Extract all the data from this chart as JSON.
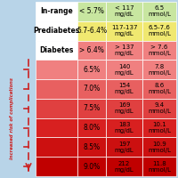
{
  "bg_color": "#b8d4e8",
  "rows": [
    {
      "label": "In-range",
      "a1c": "< 5.7%",
      "mgdl": "< 117\nmg/dL",
      "mmol": "6.5\nmmol/L",
      "row_color": "#c8e6a0",
      "label_color": "#ffffff"
    },
    {
      "label": "Prediabetes",
      "a1c": "5.7-6.4%",
      "mgdl": "117-137\nmg/dL",
      "mmol": "6.5-7.6\nmmol/L",
      "row_color": "#f0e870",
      "label_color": "#ffffff"
    },
    {
      "label": "Diabetes",
      "a1c": "> 6.4%",
      "mgdl": "> 137\nmg/dL",
      "mmol": "> 7.6\nmmol/L",
      "row_color": "#f08080",
      "label_color": "#ffffff"
    },
    {
      "label": "",
      "a1c": "6.5%",
      "mgdl": "140\nmg/dL",
      "mmol": "7.8\nmmol/L",
      "row_color": "#f08080"
    },
    {
      "label": "",
      "a1c": "7.0%",
      "mgdl": "154\nmg/dL",
      "mmol": "8.6\nmmol/L",
      "row_color": "#e86060"
    },
    {
      "label": "",
      "a1c": "7.5%",
      "mgdl": "169\nmg/dL",
      "mmol": "9.4\nmmol/L",
      "row_color": "#e04040"
    },
    {
      "label": "",
      "a1c": "8.0%",
      "mgdl": "183\nmg/dL",
      "mmol": "10.1\nmmol/L",
      "row_color": "#d82020"
    },
    {
      "label": "",
      "a1c": "8.5%",
      "mgdl": "197\nmg/dL",
      "mmol": "10.9\nmmol/L",
      "row_color": "#cc1010"
    },
    {
      "label": "",
      "a1c": "9.0%",
      "mgdl": "212\nmg/dL",
      "mmol": "11.8\nmmol/L",
      "row_color": "#c00000"
    }
  ],
  "side_text": "increased risk of complications",
  "side_color": "#cc2222",
  "dash_color": "#cc2222",
  "border_color": "#ffffff",
  "text_color": "#000000"
}
